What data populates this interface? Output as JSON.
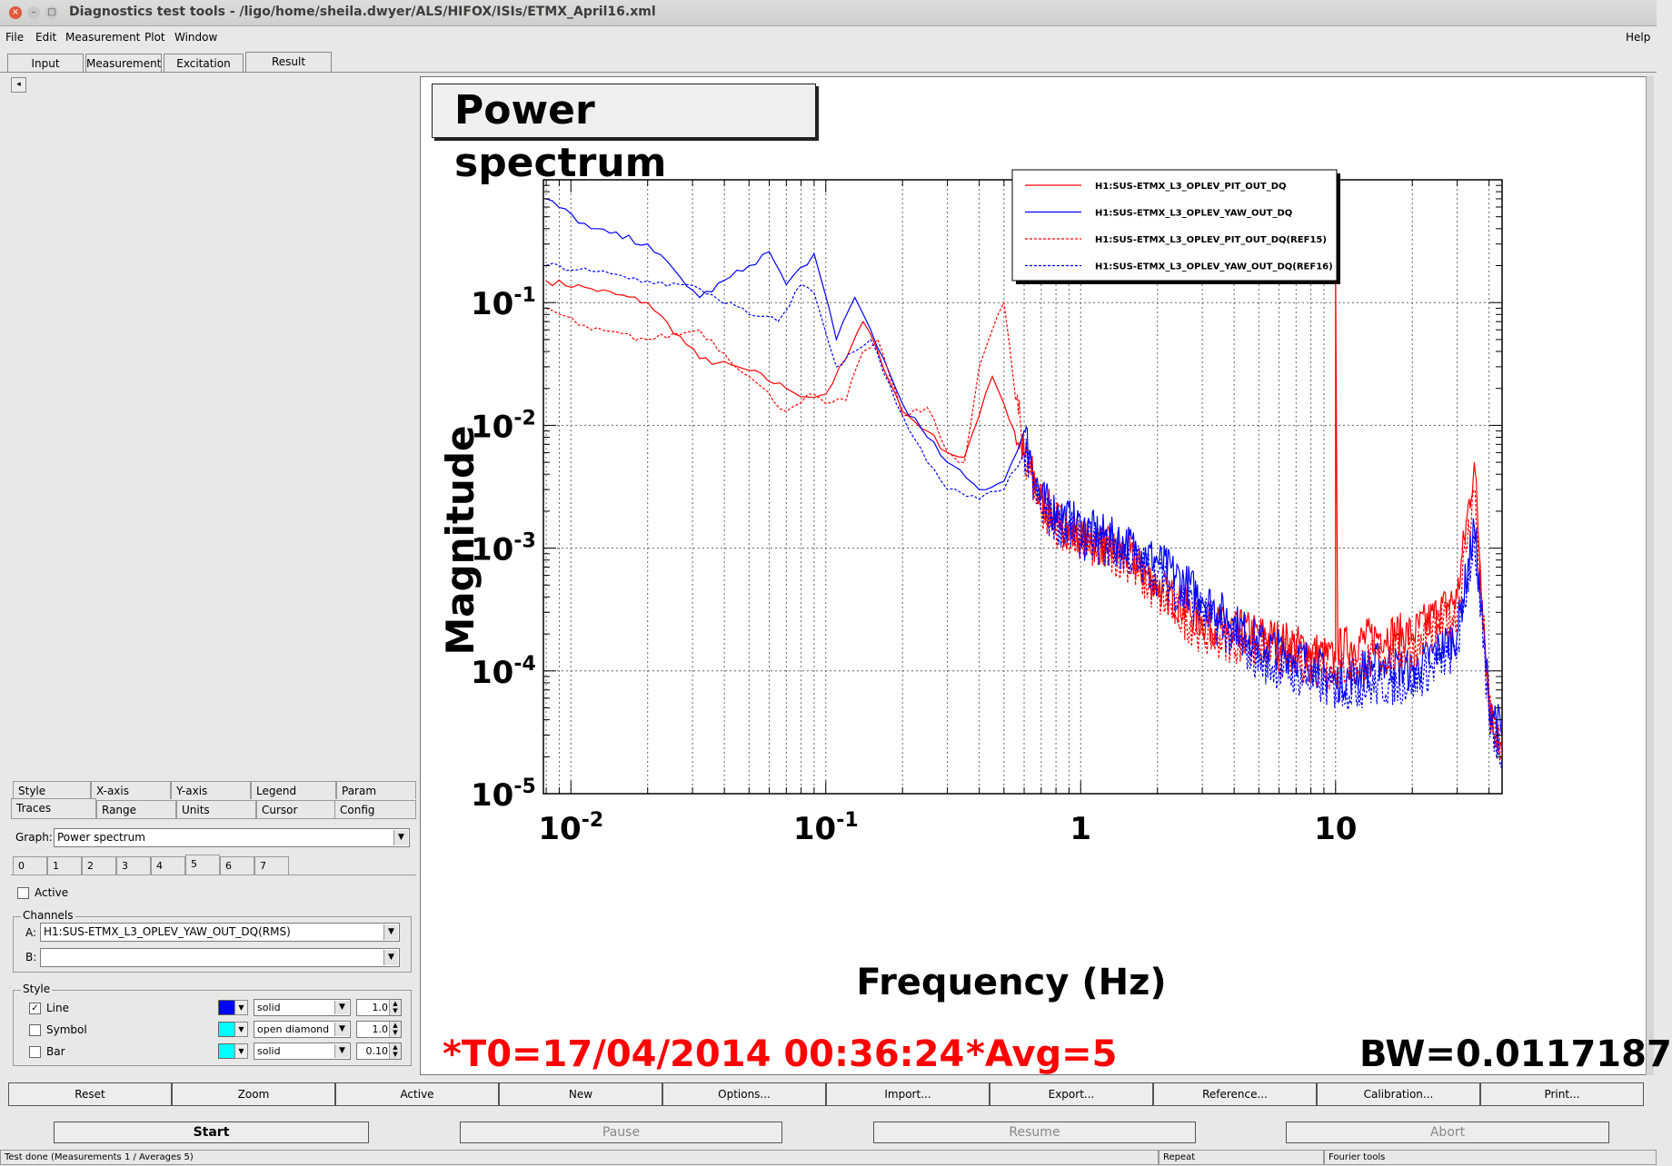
{
  "window": {
    "title": "Diagnostics test tools - /ligo/home/sheila.dwyer/ALS/HIFOX/ISIs/ETMX_April16.xml"
  },
  "menu": {
    "file": "File",
    "edit": "Edit",
    "measurement": "Measurement",
    "plot": "Plot",
    "window": "Window",
    "help": "Help"
  },
  "tabs": [
    "Input",
    "Measurement",
    "Excitation",
    "Result"
  ],
  "settings_tabs_row1": [
    "Style",
    "X-axis",
    "Y-axis",
    "Legend",
    "Param"
  ],
  "settings_tabs_row2": [
    "Traces",
    "Range",
    "Units",
    "Cursor",
    "Config"
  ],
  "graph": {
    "label": "Graph:",
    "value": "Power spectrum"
  },
  "trace_tabs": [
    "0",
    "1",
    "2",
    "3",
    "4",
    "5",
    "6",
    "7"
  ],
  "active_label": "Active",
  "channels": {
    "label": "Channels",
    "a_label": "A:",
    "a_value": "H1:SUS-ETMX_L3_OPLEV_YAW_OUT_DQ(RMS)",
    "b_label": "B:",
    "b_value": ""
  },
  "style": {
    "label": "Style",
    "line": {
      "label": "Line",
      "checked": "✓",
      "color": "#0000ff",
      "type": "solid",
      "width": "1.0"
    },
    "symbol": {
      "label": "Symbol",
      "color": "#00ffff",
      "type": "open diamond",
      "size": "1.0"
    },
    "bar": {
      "label": "Bar",
      "color": "#00ffff",
      "type": "solid",
      "width": "0.10"
    }
  },
  "plot": {
    "title": "Power spectrum",
    "t0": "*T0=17/04/2014 00:36:24",
    "avg": "*Avg=5",
    "bw": "BW=0.0117187"
  },
  "chart_data": {
    "type": "line",
    "title": "Power spectrum",
    "xlabel": "Frequency (Hz)",
    "ylabel": "Magnitude",
    "xscale": "log",
    "yscale": "log",
    "xlim": [
      0.0078,
      45
    ],
    "ylim": [
      1e-05,
      1
    ],
    "x_ticks": [
      "10-2",
      "10-1",
      "1",
      "10"
    ],
    "y_ticks": [
      "10-1",
      "10-2",
      "10-3",
      "10-4",
      "10-5"
    ],
    "grid": true,
    "legend_position": "top-right",
    "series": [
      {
        "name": "H1:SUS-ETMX_L3_OPLEV_PIT_OUT_DQ",
        "color": "#ff0000",
        "dash": "solid",
        "x": [
          0.008,
          0.012,
          0.02,
          0.032,
          0.05,
          0.07,
          0.085,
          0.1,
          0.12,
          0.14,
          0.16,
          0.2,
          0.25,
          0.3,
          0.35,
          0.4,
          0.45,
          0.5,
          0.55,
          0.6,
          0.7,
          0.8,
          1,
          1.5,
          2,
          3,
          5,
          8,
          10,
          10,
          10.2,
          15,
          20,
          30,
          35,
          40,
          45
        ],
        "y": [
          0.15,
          0.13,
          0.1,
          0.035,
          0.028,
          0.02,
          0.017,
          0.018,
          0.035,
          0.07,
          0.04,
          0.013,
          0.009,
          0.006,
          0.0055,
          0.012,
          0.025,
          0.015,
          0.009,
          0.006,
          0.0025,
          0.0017,
          0.0012,
          0.0009,
          0.0005,
          0.00025,
          0.0002,
          0.00015,
          0.00012,
          0.2,
          0.00015,
          0.0002,
          0.0002,
          0.0004,
          0.005,
          5e-05,
          2e-05
        ]
      },
      {
        "name": "H1:SUS-ETMX_L3_OPLEV_YAW_OUT_DQ",
        "color": "#0000ff",
        "dash": "solid",
        "x": [
          0.008,
          0.012,
          0.02,
          0.032,
          0.05,
          0.06,
          0.07,
          0.09,
          0.11,
          0.13,
          0.15,
          0.2,
          0.25,
          0.3,
          0.4,
          0.5,
          0.6,
          0.7,
          0.8,
          1,
          1.5,
          2,
          3,
          5,
          8,
          10,
          15,
          20,
          30,
          35,
          40,
          45
        ],
        "y": [
          0.7,
          0.4,
          0.3,
          0.11,
          0.2,
          0.26,
          0.14,
          0.25,
          0.05,
          0.11,
          0.06,
          0.015,
          0.008,
          0.005,
          0.003,
          0.0035,
          0.009,
          0.0025,
          0.002,
          0.0015,
          0.0011,
          0.0008,
          0.0004,
          0.00017,
          0.00012,
          8e-05,
          0.00012,
          0.0001,
          0.0002,
          0.0015,
          6e-05,
          3e-05
        ]
      },
      {
        "name": "H1:SUS-ETMX_L3_OPLEV_PIT_OUT_DQ(REF15)",
        "color": "#ff0000",
        "dash": "dashed",
        "x": [
          0.008,
          0.012,
          0.02,
          0.032,
          0.05,
          0.07,
          0.085,
          0.1,
          0.12,
          0.14,
          0.16,
          0.2,
          0.25,
          0.3,
          0.35,
          0.4,
          0.45,
          0.5,
          0.55,
          0.6,
          0.7,
          0.8,
          1,
          1.5,
          2,
          3,
          5,
          10,
          20,
          30,
          35,
          40,
          45
        ],
        "y": [
          0.09,
          0.06,
          0.05,
          0.06,
          0.025,
          0.013,
          0.018,
          0.015,
          0.016,
          0.04,
          0.05,
          0.012,
          0.014,
          0.006,
          0.005,
          0.03,
          0.06,
          0.1,
          0.02,
          0.006,
          0.002,
          0.0015,
          0.0011,
          0.0008,
          0.0004,
          0.0002,
          0.00015,
          0.0001,
          0.00015,
          0.0003,
          0.003,
          5e-05,
          2e-05
        ]
      },
      {
        "name": "H1:SUS-ETMX_L3_OPLEV_YAW_OUT_DQ(REF16)",
        "color": "#0000ff",
        "dash": "dashed",
        "x": [
          0.008,
          0.012,
          0.02,
          0.032,
          0.05,
          0.065,
          0.08,
          0.09,
          0.11,
          0.13,
          0.15,
          0.2,
          0.25,
          0.3,
          0.4,
          0.5,
          0.6,
          0.7,
          0.8,
          1,
          1.5,
          2,
          3,
          5,
          10,
          20,
          30,
          35,
          40,
          45
        ],
        "y": [
          0.2,
          0.18,
          0.15,
          0.13,
          0.08,
          0.07,
          0.14,
          0.12,
          0.03,
          0.04,
          0.05,
          0.012,
          0.005,
          0.003,
          0.0025,
          0.003,
          0.006,
          0.002,
          0.0016,
          0.0012,
          0.0009,
          0.0006,
          0.0003,
          0.00012,
          7e-05,
          8e-05,
          0.00015,
          0.0012,
          4e-05,
          2e-05
        ]
      }
    ]
  },
  "action_buttons": [
    "Reset",
    "Zoom",
    "Active",
    "New",
    "Options...",
    "Import...",
    "Export...",
    "Reference...",
    "Calibration...",
    "Print..."
  ],
  "run_buttons": [
    "Start",
    "Pause",
    "Resume",
    "Abort"
  ],
  "status": {
    "main": "Test done (Measurements 1 / Averages 5)",
    "mode": "Repeat",
    "tool": "Fourier tools"
  }
}
